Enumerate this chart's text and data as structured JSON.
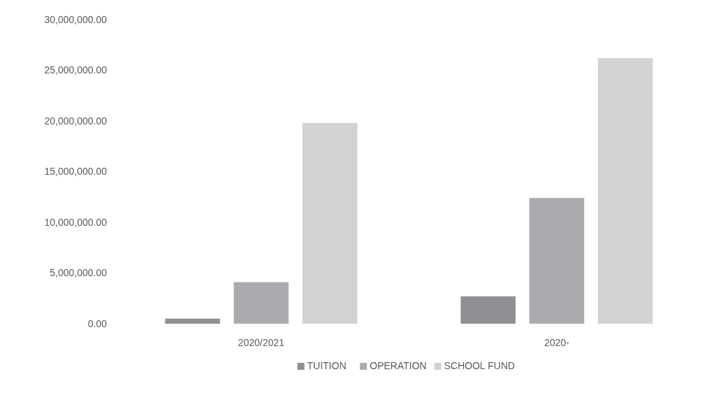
{
  "chart_data": {
    "type": "bar",
    "categories": [
      "2020/2021",
      "2020-"
    ],
    "series": [
      {
        "name": "TUITION",
        "color": "#8f8f94",
        "values": [
          500000,
          2700000
        ]
      },
      {
        "name": "OPERATION",
        "color": "#ababaf",
        "values": [
          4100000,
          12400000
        ]
      },
      {
        "name": "SCHOOL FUND",
        "color": "#d2d2d4",
        "values": [
          19800000,
          26200000
        ]
      }
    ],
    "ylim": [
      0,
      30000000
    ],
    "yticks": [
      {
        "value": 0,
        "label": "0.00"
      },
      {
        "value": 5000000,
        "label": "5,000,000.00"
      },
      {
        "value": 10000000,
        "label": "10,000,000.00"
      },
      {
        "value": 15000000,
        "label": "15,000,000.00"
      },
      {
        "value": 20000000,
        "label": "20,000,000.00"
      },
      {
        "value": 25000000,
        "label": "25,000,000.00"
      },
      {
        "value": 30000000,
        "label": "30,000,000.00"
      }
    ],
    "grid": false,
    "legend": "bottom"
  }
}
